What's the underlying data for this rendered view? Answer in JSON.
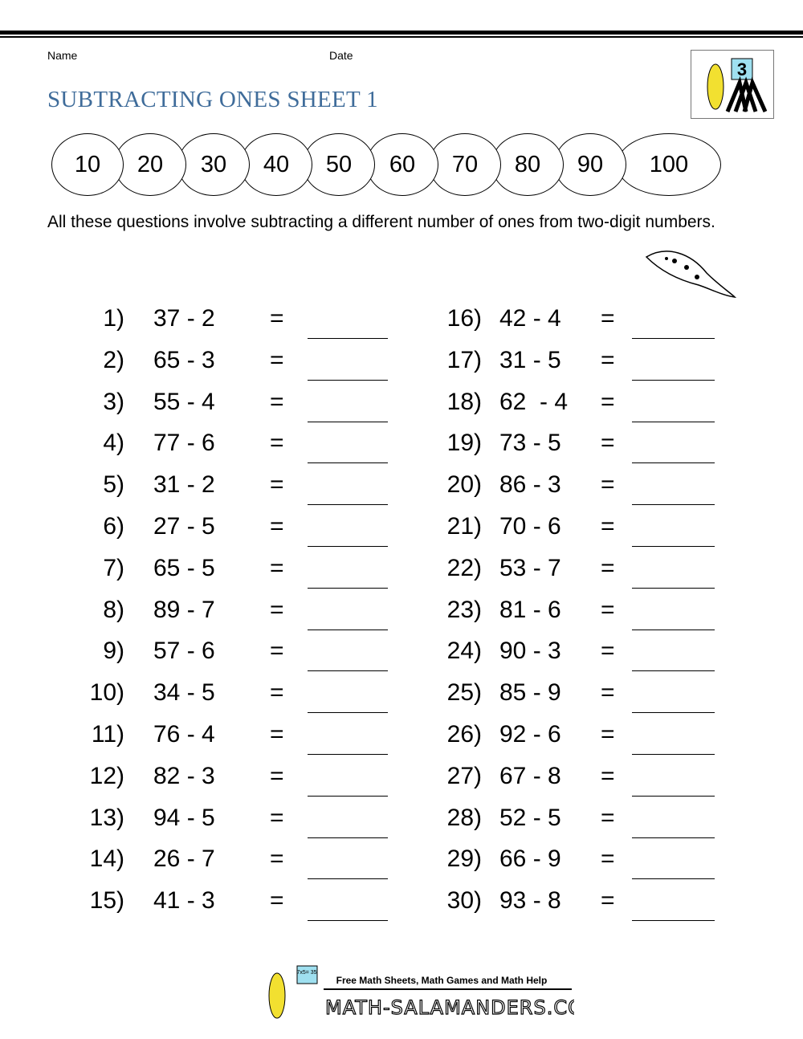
{
  "header": {
    "name_label": "Name",
    "date_label": "Date",
    "title": "SUBTRACTING ONES SHEET 1",
    "logo_text": "3"
  },
  "number_line": [
    "10",
    "20",
    "30",
    "40",
    "50",
    "60",
    "70",
    "80",
    "90",
    "100"
  ],
  "intro": "All these questions involve subtracting a different number of ones from two-digit numbers.",
  "equals": "=",
  "questions": [
    {
      "n": "1)",
      "e": "37 - 2"
    },
    {
      "n": "2)",
      "e": "65 - 3"
    },
    {
      "n": "3)",
      "e": "55 - 4"
    },
    {
      "n": "4)",
      "e": "77 - 6"
    },
    {
      "n": "5)",
      "e": "31 - 2"
    },
    {
      "n": "6)",
      "e": "27 - 5"
    },
    {
      "n": "7)",
      "e": "65 - 5"
    },
    {
      "n": "8)",
      "e": "89 - 7"
    },
    {
      "n": "9)",
      "e": "57 - 6"
    },
    {
      "n": "10)",
      "e": "34 - 5"
    },
    {
      "n": "11)",
      "e": "76 - 4"
    },
    {
      "n": "12)",
      "e": "82 - 3"
    },
    {
      "n": "13)",
      "e": "94 - 5"
    },
    {
      "n": "14)",
      "e": "26 - 7"
    },
    {
      "n": "15)",
      "e": "41 - 3"
    },
    {
      "n": "16)",
      "e": "42 - 4"
    },
    {
      "n": "17)",
      "e": "31 - 5"
    },
    {
      "n": "18)",
      "e": "62  - 4"
    },
    {
      "n": "19)",
      "e": "73 - 5"
    },
    {
      "n": "20)",
      "e": "86 - 3"
    },
    {
      "n": "21)",
      "e": "70 - 6"
    },
    {
      "n": "22)",
      "e": "53 - 7"
    },
    {
      "n": "23)",
      "e": "81 - 6"
    },
    {
      "n": "24)",
      "e": "90 - 3"
    },
    {
      "n": "25)",
      "e": "85 - 9"
    },
    {
      "n": "26)",
      "e": "92 - 6"
    },
    {
      "n": "27)",
      "e": "67 - 8"
    },
    {
      "n": "28)",
      "e": "52 - 5"
    },
    {
      "n": "29)",
      "e": "66 - 9"
    },
    {
      "n": "30)",
      "e": "93 - 8"
    }
  ],
  "footer": {
    "tagline": "Free Math Sheets, Math Games and Math Help",
    "site": "MATH-SALAMANDERS.COM",
    "board_text": "7x5= 35"
  },
  "colors": {
    "title": "#3f6c9a",
    "salamander": "#f2e030",
    "board": "#9fe0f0"
  }
}
